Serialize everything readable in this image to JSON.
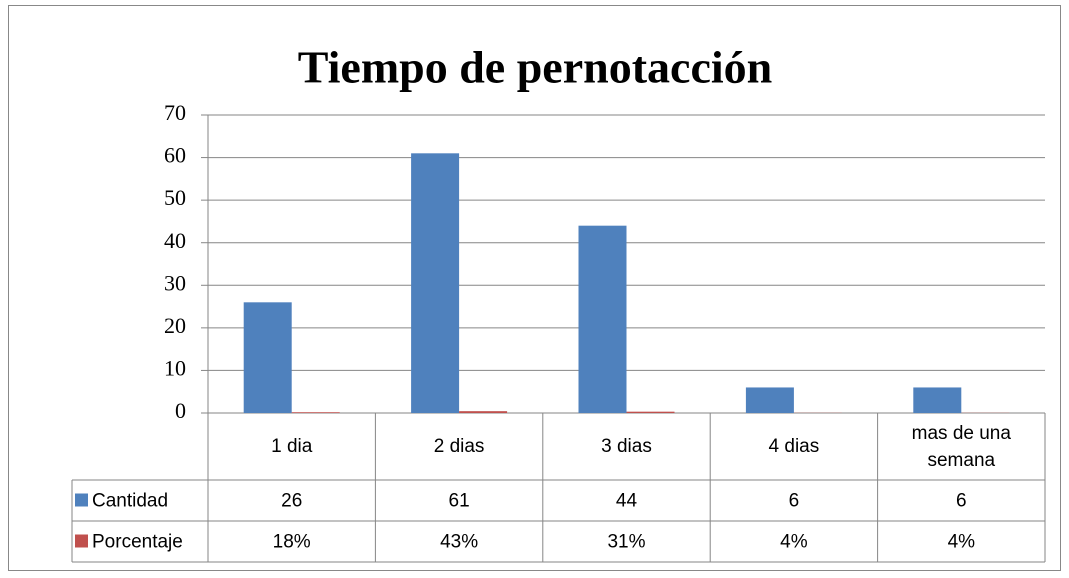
{
  "chart_data": {
    "type": "bar",
    "title": "Tiempo de pernotacción",
    "categories": [
      "1 dia",
      "2 dias",
      "3 dias",
      "4 dias",
      "mas de una semana"
    ],
    "series": [
      {
        "name": "Cantidad",
        "color": "#4f81bd",
        "values": [
          26,
          61,
          44,
          6,
          6
        ]
      },
      {
        "name": "Porcentaje",
        "color": "#c0504d",
        "values": [
          0.18,
          0.43,
          0.31,
          0.04,
          0.04
        ],
        "value_labels": [
          "18%",
          "43%",
          "31%",
          "4%",
          "4%"
        ]
      }
    ],
    "ylim": [
      0,
      70
    ],
    "yticks": [
      0,
      10,
      20,
      30,
      40,
      50,
      60,
      70
    ],
    "grid": true,
    "data_table": true
  }
}
